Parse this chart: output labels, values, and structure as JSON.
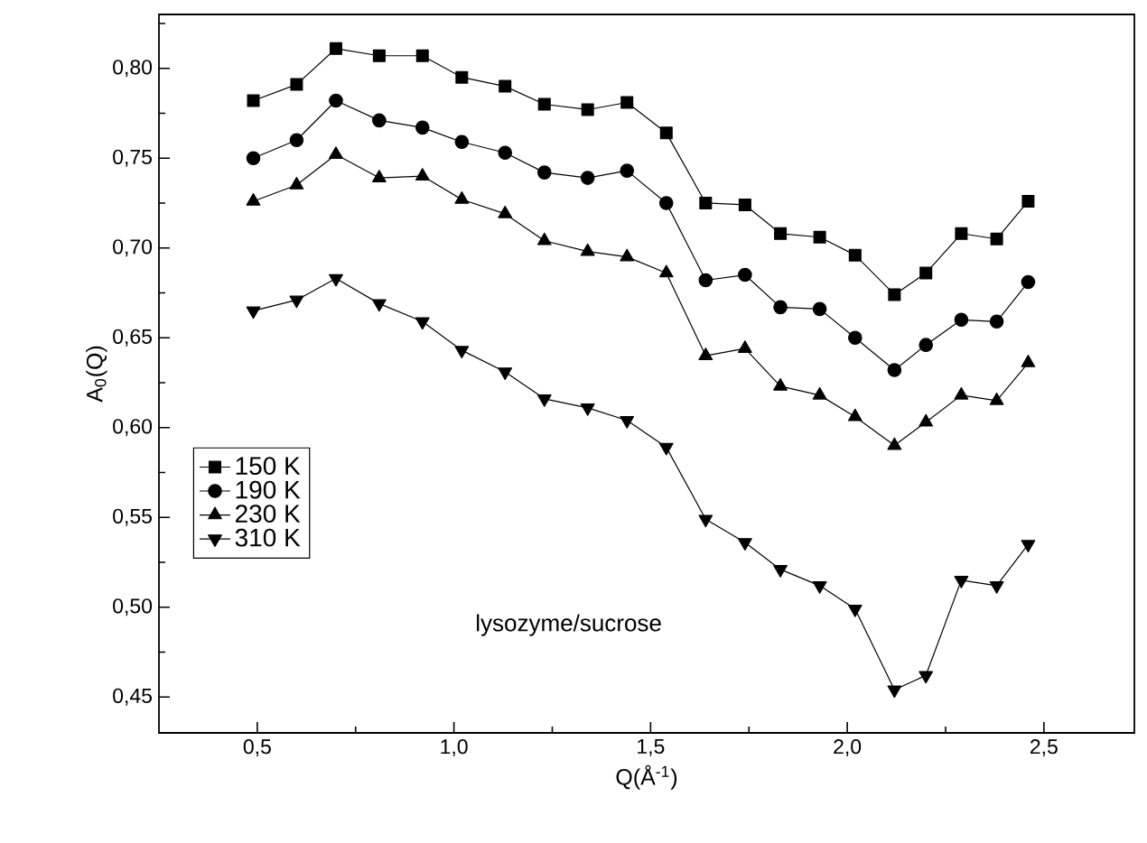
{
  "chart_data": {
    "type": "line",
    "xlabel": "Q(Å$^{-1}$)",
    "ylabel": "A$_{0}$(Q)",
    "x": [
      0.49,
      0.6,
      0.7,
      0.81,
      0.92,
      1.02,
      1.13,
      1.23,
      1.34,
      1.44,
      1.54,
      1.64,
      1.74,
      1.83,
      1.93,
      2.02,
      2.12,
      2.2,
      2.29,
      2.38,
      2.46
    ],
    "series": [
      {
        "name": "150 K",
        "color": "#000000",
        "marker": "square",
        "values": [
          0.782,
          0.791,
          0.811,
          0.807,
          0.807,
          0.795,
          0.79,
          0.78,
          0.777,
          0.781,
          0.764,
          0.725,
          0.724,
          0.708,
          0.706,
          0.696,
          0.674,
          0.686,
          0.708,
          0.705,
          0.726
        ]
      },
      {
        "name": "190 K",
        "color": "#000000",
        "marker": "circle",
        "values": [
          0.75,
          0.76,
          0.782,
          0.771,
          0.767,
          0.759,
          0.753,
          0.742,
          0.739,
          0.743,
          0.725,
          0.682,
          0.685,
          0.667,
          0.666,
          0.65,
          0.632,
          0.646,
          0.66,
          0.659,
          0.681
        ]
      },
      {
        "name": "230 K",
        "color": "#000000",
        "marker": "triangle",
        "values": [
          0.726,
          0.735,
          0.752,
          0.739,
          0.74,
          0.727,
          0.719,
          0.704,
          0.698,
          0.695,
          0.686,
          0.64,
          0.644,
          0.623,
          0.618,
          0.606,
          0.59,
          0.603,
          0.618,
          0.615,
          0.636
        ]
      },
      {
        "name": "310 K",
        "color": "#000000",
        "marker": "triangle-down",
        "values": [
          0.665,
          0.671,
          0.683,
          0.669,
          0.659,
          0.643,
          0.631,
          0.616,
          0.611,
          0.604,
          0.589,
          0.549,
          0.536,
          0.521,
          0.512,
          0.499,
          0.454,
          0.462,
          0.515,
          0.512,
          0.535
        ]
      }
    ],
    "xlim": [
      0.25,
      2.73
    ],
    "ylim": [
      0.43,
      0.83
    ],
    "xticks": [
      {
        "value": 0.5,
        "label": "0,5"
      },
      {
        "value": 0.75,
        "label": null
      },
      {
        "value": 1.0,
        "label": "1,0"
      },
      {
        "value": 1.25,
        "label": null
      },
      {
        "value": 1.5,
        "label": "1,5"
      },
      {
        "value": 1.75,
        "label": null
      },
      {
        "value": 2.0,
        "label": "2,0"
      },
      {
        "value": 2.25,
        "label": null
      },
      {
        "value": 2.5,
        "label": "2,5"
      }
    ],
    "yticks": [
      {
        "value": 0.45,
        "label": "0,45"
      },
      {
        "value": 0.475,
        "label": null
      },
      {
        "value": 0.5,
        "label": "0,50"
      },
      {
        "value": 0.525,
        "label": null
      },
      {
        "value": 0.55,
        "label": "0,55"
      },
      {
        "value": 0.575,
        "label": null
      },
      {
        "value": 0.6,
        "label": "0,60"
      },
      {
        "value": 0.625,
        "label": null
      },
      {
        "value": 0.65,
        "label": "0,65"
      },
      {
        "value": 0.675,
        "label": null
      },
      {
        "value": 0.7,
        "label": "0,70"
      },
      {
        "value": 0.725,
        "label": null
      },
      {
        "value": 0.75,
        "label": "0,75"
      },
      {
        "value": 0.775,
        "label": null
      },
      {
        "value": 0.8,
        "label": "0,80"
      },
      {
        "value": 0.825,
        "label": null
      }
    ],
    "legend": "left",
    "line_style": "solid",
    "annotations": [
      "lysozyme/sucrose"
    ]
  }
}
